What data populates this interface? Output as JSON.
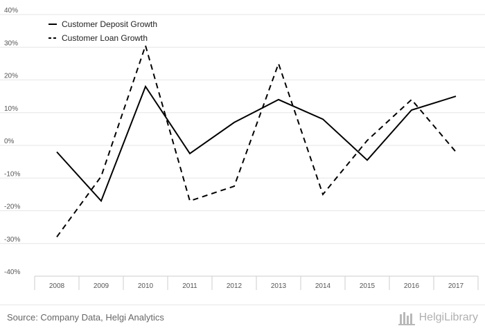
{
  "chart_data": {
    "type": "line",
    "categories": [
      "2008",
      "2009",
      "2010",
      "2011",
      "2012",
      "2013",
      "2014",
      "2015",
      "2016",
      "2017"
    ],
    "series": [
      {
        "name": "Customer Deposit Growth",
        "style": "solid",
        "values": [
          -2,
          -17,
          18,
          -2.5,
          7,
          14,
          8,
          -4.5,
          10.8,
          15
        ]
      },
      {
        "name": "Customer Loan Growth",
        "style": "dashed",
        "values": [
          -28,
          -9.5,
          30.5,
          -17,
          -12.5,
          25,
          -15,
          1.5,
          14,
          -2
        ]
      }
    ],
    "y_ticks": [
      "40%",
      "30%",
      "20%",
      "10%",
      "0%",
      "-10%",
      "-20%",
      "-30%",
      "-40%"
    ],
    "ylim": [
      -40,
      40
    ],
    "grid": true,
    "legend_position": "top-left",
    "title": "",
    "xlabel": "",
    "ylabel": ""
  },
  "footer": {
    "source": "Source: Company Data, Helgi Analytics",
    "brand": "HelgiLibrary"
  },
  "colors": {
    "line": "#000000",
    "grid": "#e6e6e6",
    "axis": "#cccccc",
    "text": "#555555"
  }
}
